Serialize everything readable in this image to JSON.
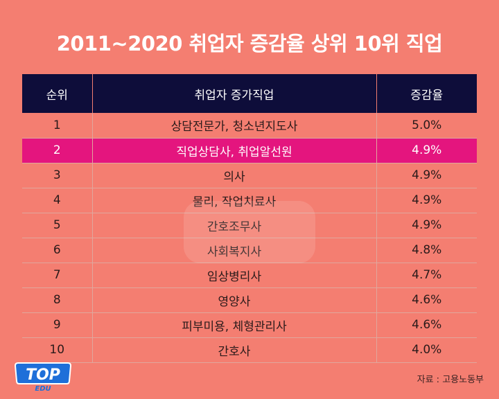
{
  "title": "2011~2020 취업자 증감율 상위 10위 직업",
  "chart_data": {
    "type": "table",
    "columns": [
      "순위",
      "취업자 증가직업",
      "증감율"
    ],
    "rows": [
      {
        "rank": "1",
        "job": "상담전문가, 청소년지도사",
        "rate": "5.0%",
        "highlight": false
      },
      {
        "rank": "2",
        "job": "직업상담사, 취업알선원",
        "rate": "4.9%",
        "highlight": true
      },
      {
        "rank": "3",
        "job": "의사",
        "rate": "4.9%",
        "highlight": false
      },
      {
        "rank": "4",
        "job": "물리, 작업치료사",
        "rate": "4.9%",
        "highlight": false
      },
      {
        "rank": "5",
        "job": "간호조무사",
        "rate": "4.9%",
        "highlight": false
      },
      {
        "rank": "6",
        "job": "사회복지사",
        "rate": "4.8%",
        "highlight": false
      },
      {
        "rank": "7",
        "job": "임상병리사",
        "rate": "4.7%",
        "highlight": false
      },
      {
        "rank": "8",
        "job": "영양사",
        "rate": "4.6%",
        "highlight": false
      },
      {
        "rank": "9",
        "job": "피부미용, 체형관리사",
        "rate": "4.6%",
        "highlight": false
      },
      {
        "rank": "10",
        "job": "간호사",
        "rate": "4.0%",
        "highlight": false
      }
    ]
  },
  "logo": {
    "main": "TOP",
    "sub": "EDU"
  },
  "source": "자료 : 고용노동부",
  "colors": {
    "background": "#F47E71",
    "header": "#0E0D3A",
    "highlight": "#E4157E",
    "logo_blue": "#1E6FD9"
  }
}
